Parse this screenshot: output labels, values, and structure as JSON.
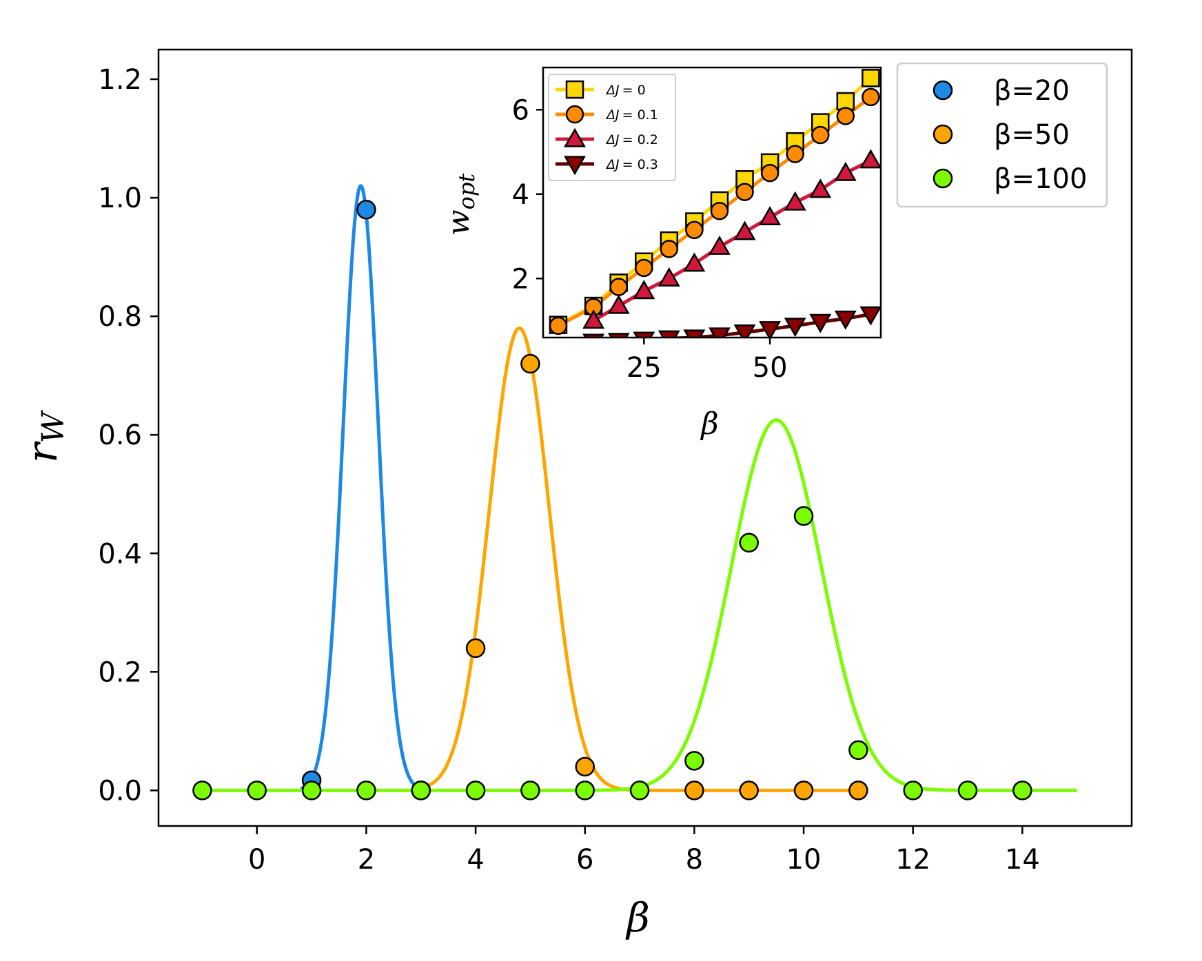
{
  "chart_data": [
    {
      "type": "line",
      "role": "main",
      "xlabel": "β",
      "ylabel": "r",
      "ylabel_sub": "W",
      "xlim": [
        -1.8,
        16.0
      ],
      "ylim": [
        -0.06,
        1.25
      ],
      "xticks": [
        0,
        2,
        4,
        6,
        8,
        10,
        12,
        14
      ],
      "yticks": [
        0.0,
        0.2,
        0.4,
        0.6,
        0.8,
        1.0,
        1.2
      ],
      "xtick_labels": [
        "0",
        "2",
        "4",
        "6",
        "8",
        "10",
        "12",
        "14"
      ],
      "ytick_labels": [
        "0.0",
        "0.2",
        "0.4",
        "0.6",
        "0.8",
        "1.0",
        "1.2"
      ],
      "legend_position": "top-right",
      "series": [
        {
          "name": "β=20",
          "color": "#1e88e5",
          "curve": {
            "shape": "gaussian",
            "amplitude": 1.02,
            "center": 1.9,
            "sigma": 0.32,
            "x_range": [
              0.8,
              2.95
            ]
          },
          "points": {
            "x": [
              1,
              2,
              3
            ],
            "y": [
              0.017,
              0.98,
              0.0
            ]
          }
        },
        {
          "name": "β=50",
          "color": "#ffa500",
          "curve": {
            "shape": "gaussian",
            "amplitude": 0.78,
            "center": 4.8,
            "sigma": 0.55,
            "x_range": [
              3.0,
              11.0
            ]
          },
          "points": {
            "x": [
              4,
              5,
              6,
              8,
              9,
              10,
              11
            ],
            "y": [
              0.24,
              0.72,
              0.04,
              0.0,
              0.0,
              0.0,
              0.0
            ]
          }
        },
        {
          "name": "β=100",
          "color": "#7cfc00",
          "curve": {
            "shape": "gaussian",
            "amplitude": 0.625,
            "center": 9.5,
            "sigma": 0.82,
            "x_range": [
              -1.0,
              15.0
            ]
          },
          "points": {
            "x": [
              -1,
              0,
              1,
              2,
              3,
              4,
              5,
              6,
              7,
              8,
              9,
              10,
              11,
              12,
              13,
              14
            ],
            "y": [
              0,
              0,
              0,
              0,
              0,
              0,
              0,
              0,
              0,
              0.05,
              0.418,
              0.463,
              0.068,
              0,
              0,
              0
            ]
          }
        }
      ]
    },
    {
      "type": "line",
      "role": "inset",
      "xlabel": "β",
      "ylabel": "w",
      "ylabel_sub": "opt",
      "xlim": [
        5,
        72
      ],
      "ylim": [
        0.6,
        7.0
      ],
      "xticks": [
        25,
        50
      ],
      "yticks": [
        2,
        4,
        6
      ],
      "xtick_labels": [
        "25",
        "50"
      ],
      "ytick_labels": [
        "2",
        "4",
        "6"
      ],
      "legend_position": "top-left",
      "series": [
        {
          "name": "ΔJ = 0",
          "label_prefix": "ΔJ",
          "label_value": "= 0",
          "color": "#ffd700",
          "line_color": "#ffd700",
          "marker": "square",
          "x": [
            8,
            15,
            20,
            25,
            30,
            35,
            40,
            45,
            50,
            55,
            60,
            65,
            70
          ],
          "y": [
            0.9,
            1.35,
            1.9,
            2.4,
            2.9,
            3.35,
            3.85,
            4.35,
            4.75,
            5.25,
            5.7,
            6.2,
            6.75
          ]
        },
        {
          "name": "ΔJ = 0.1",
          "label_prefix": "ΔJ",
          "label_value": "= 0.1",
          "color": "#ff8c00",
          "line_color": "#ff8c00",
          "marker": "circle",
          "x": [
            8,
            15,
            20,
            25,
            30,
            35,
            40,
            45,
            50,
            55,
            60,
            65,
            70
          ],
          "y": [
            0.88,
            1.32,
            1.8,
            2.25,
            2.7,
            3.15,
            3.6,
            4.05,
            4.5,
            4.95,
            5.4,
            5.85,
            6.3
          ]
        },
        {
          "name": "ΔJ = 0.2",
          "label_prefix": "ΔJ",
          "label_value": "= 0.2",
          "color": "#d2173c",
          "line_color": "#d2173c",
          "marker": "triangle-up",
          "x": [
            15,
            20,
            25,
            30,
            35,
            40,
            45,
            50,
            55,
            60,
            65,
            70
          ],
          "y": [
            1.0,
            1.35,
            1.7,
            2.0,
            2.35,
            2.75,
            3.1,
            3.45,
            3.8,
            4.1,
            4.5,
            4.8
          ]
        },
        {
          "name": "ΔJ = 0.3",
          "label_prefix": "ΔJ",
          "label_value": "= 0.3",
          "color": "#8b0000",
          "line_color": "#5c0000",
          "marker": "triangle-down",
          "x": [
            15,
            20,
            25,
            30,
            35,
            40,
            45,
            50,
            55,
            60,
            65,
            70
          ],
          "y": [
            0.5,
            0.52,
            0.55,
            0.58,
            0.6,
            0.65,
            0.72,
            0.8,
            0.88,
            0.97,
            1.05,
            1.15
          ]
        }
      ]
    }
  ]
}
